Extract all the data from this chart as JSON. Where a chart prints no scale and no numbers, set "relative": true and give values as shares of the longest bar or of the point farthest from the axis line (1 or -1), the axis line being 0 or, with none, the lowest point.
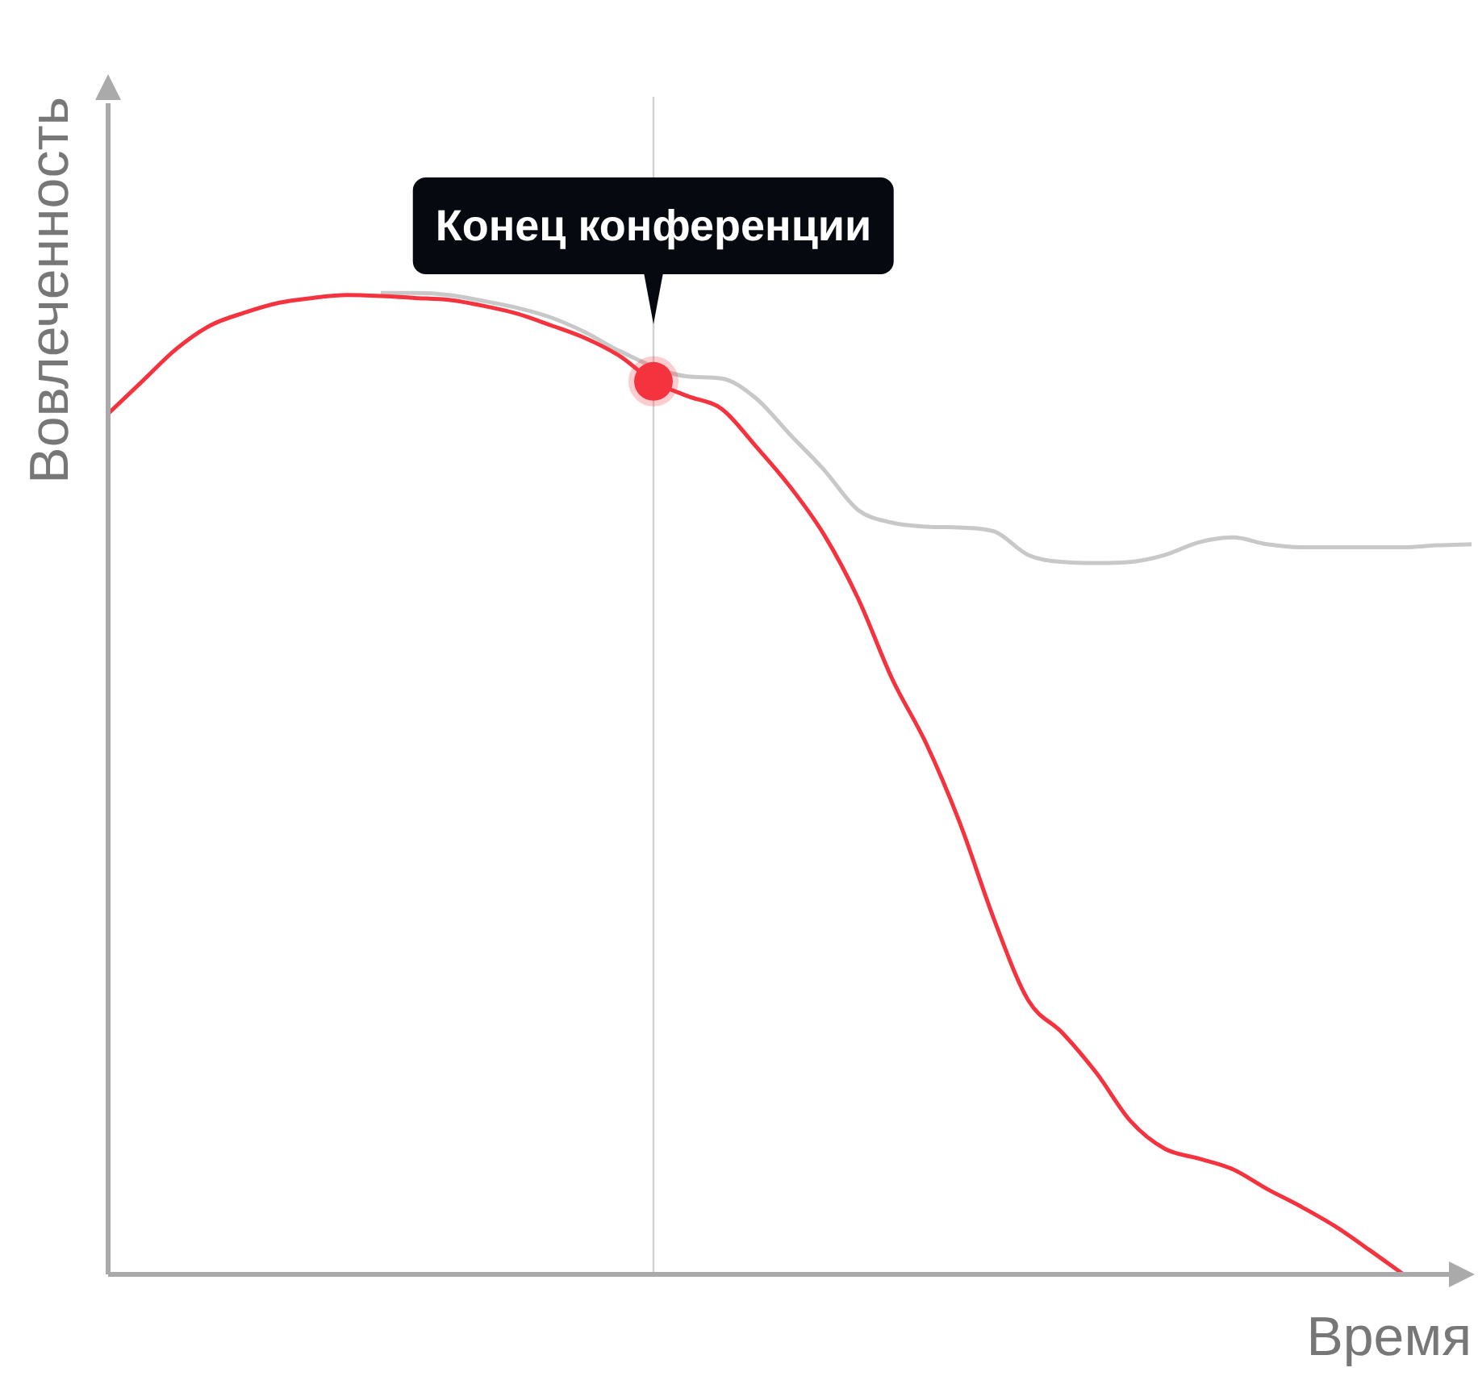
{
  "chart_data": {
    "type": "line",
    "relative": true,
    "xlabel": "Время",
    "ylabel": "Вовлеченность",
    "grid": false,
    "legend": false,
    "marker": "none",
    "line_style": "solid",
    "categories": [
      null,
      null,
      null,
      null,
      null,
      null,
      null,
      null,
      null,
      null,
      null,
      null,
      null,
      null,
      null,
      null,
      null,
      null,
      null,
      null,
      null,
      null,
      null,
      null,
      null,
      null,
      null,
      null,
      null,
      null,
      null,
      null,
      null,
      null,
      null,
      null,
      null,
      null,
      null,
      null,
      null
    ],
    "series": [
      {
        "color": "#c8c8c8",
        "values": [
          null,
          null,
          null,
          null,
          null,
          null,
          null,
          null,
          1.0,
          1.0,
          0.998,
          0.992,
          0.985,
          0.975,
          0.96,
          0.941,
          null,
          0.915,
          0.913,
          0.893,
          0.856,
          0.82,
          0.779,
          0.766,
          0.762,
          0.761,
          0.757,
          0.733,
          0.726,
          0.725,
          0.726,
          0.733,
          0.746,
          0.751,
          0.744,
          0.741,
          0.741,
          0.741,
          0.741,
          0.743,
          0.744
        ]
      },
      {
        "color": "#f5333f",
        "values": [
          0.877,
          0.91,
          0.943,
          0.967,
          0.98,
          0.99,
          0.995,
          0.998,
          0.997,
          0.995,
          0.993,
          0.987,
          0.979,
          0.967,
          0.954,
          0.936,
          0.91,
          0.895,
          0.882,
          0.844,
          0.803,
          0.754,
          0.689,
          0.607,
          0.541,
          0.459,
          0.361,
          0.279,
          0.246,
          0.205,
          0.156,
          0.128,
          0.118,
          0.107,
          0.087,
          0.069,
          0.049,
          0.025,
          0.0,
          null,
          null
        ]
      }
    ],
    "annotations": [
      "Конец конференции"
    ]
  }
}
